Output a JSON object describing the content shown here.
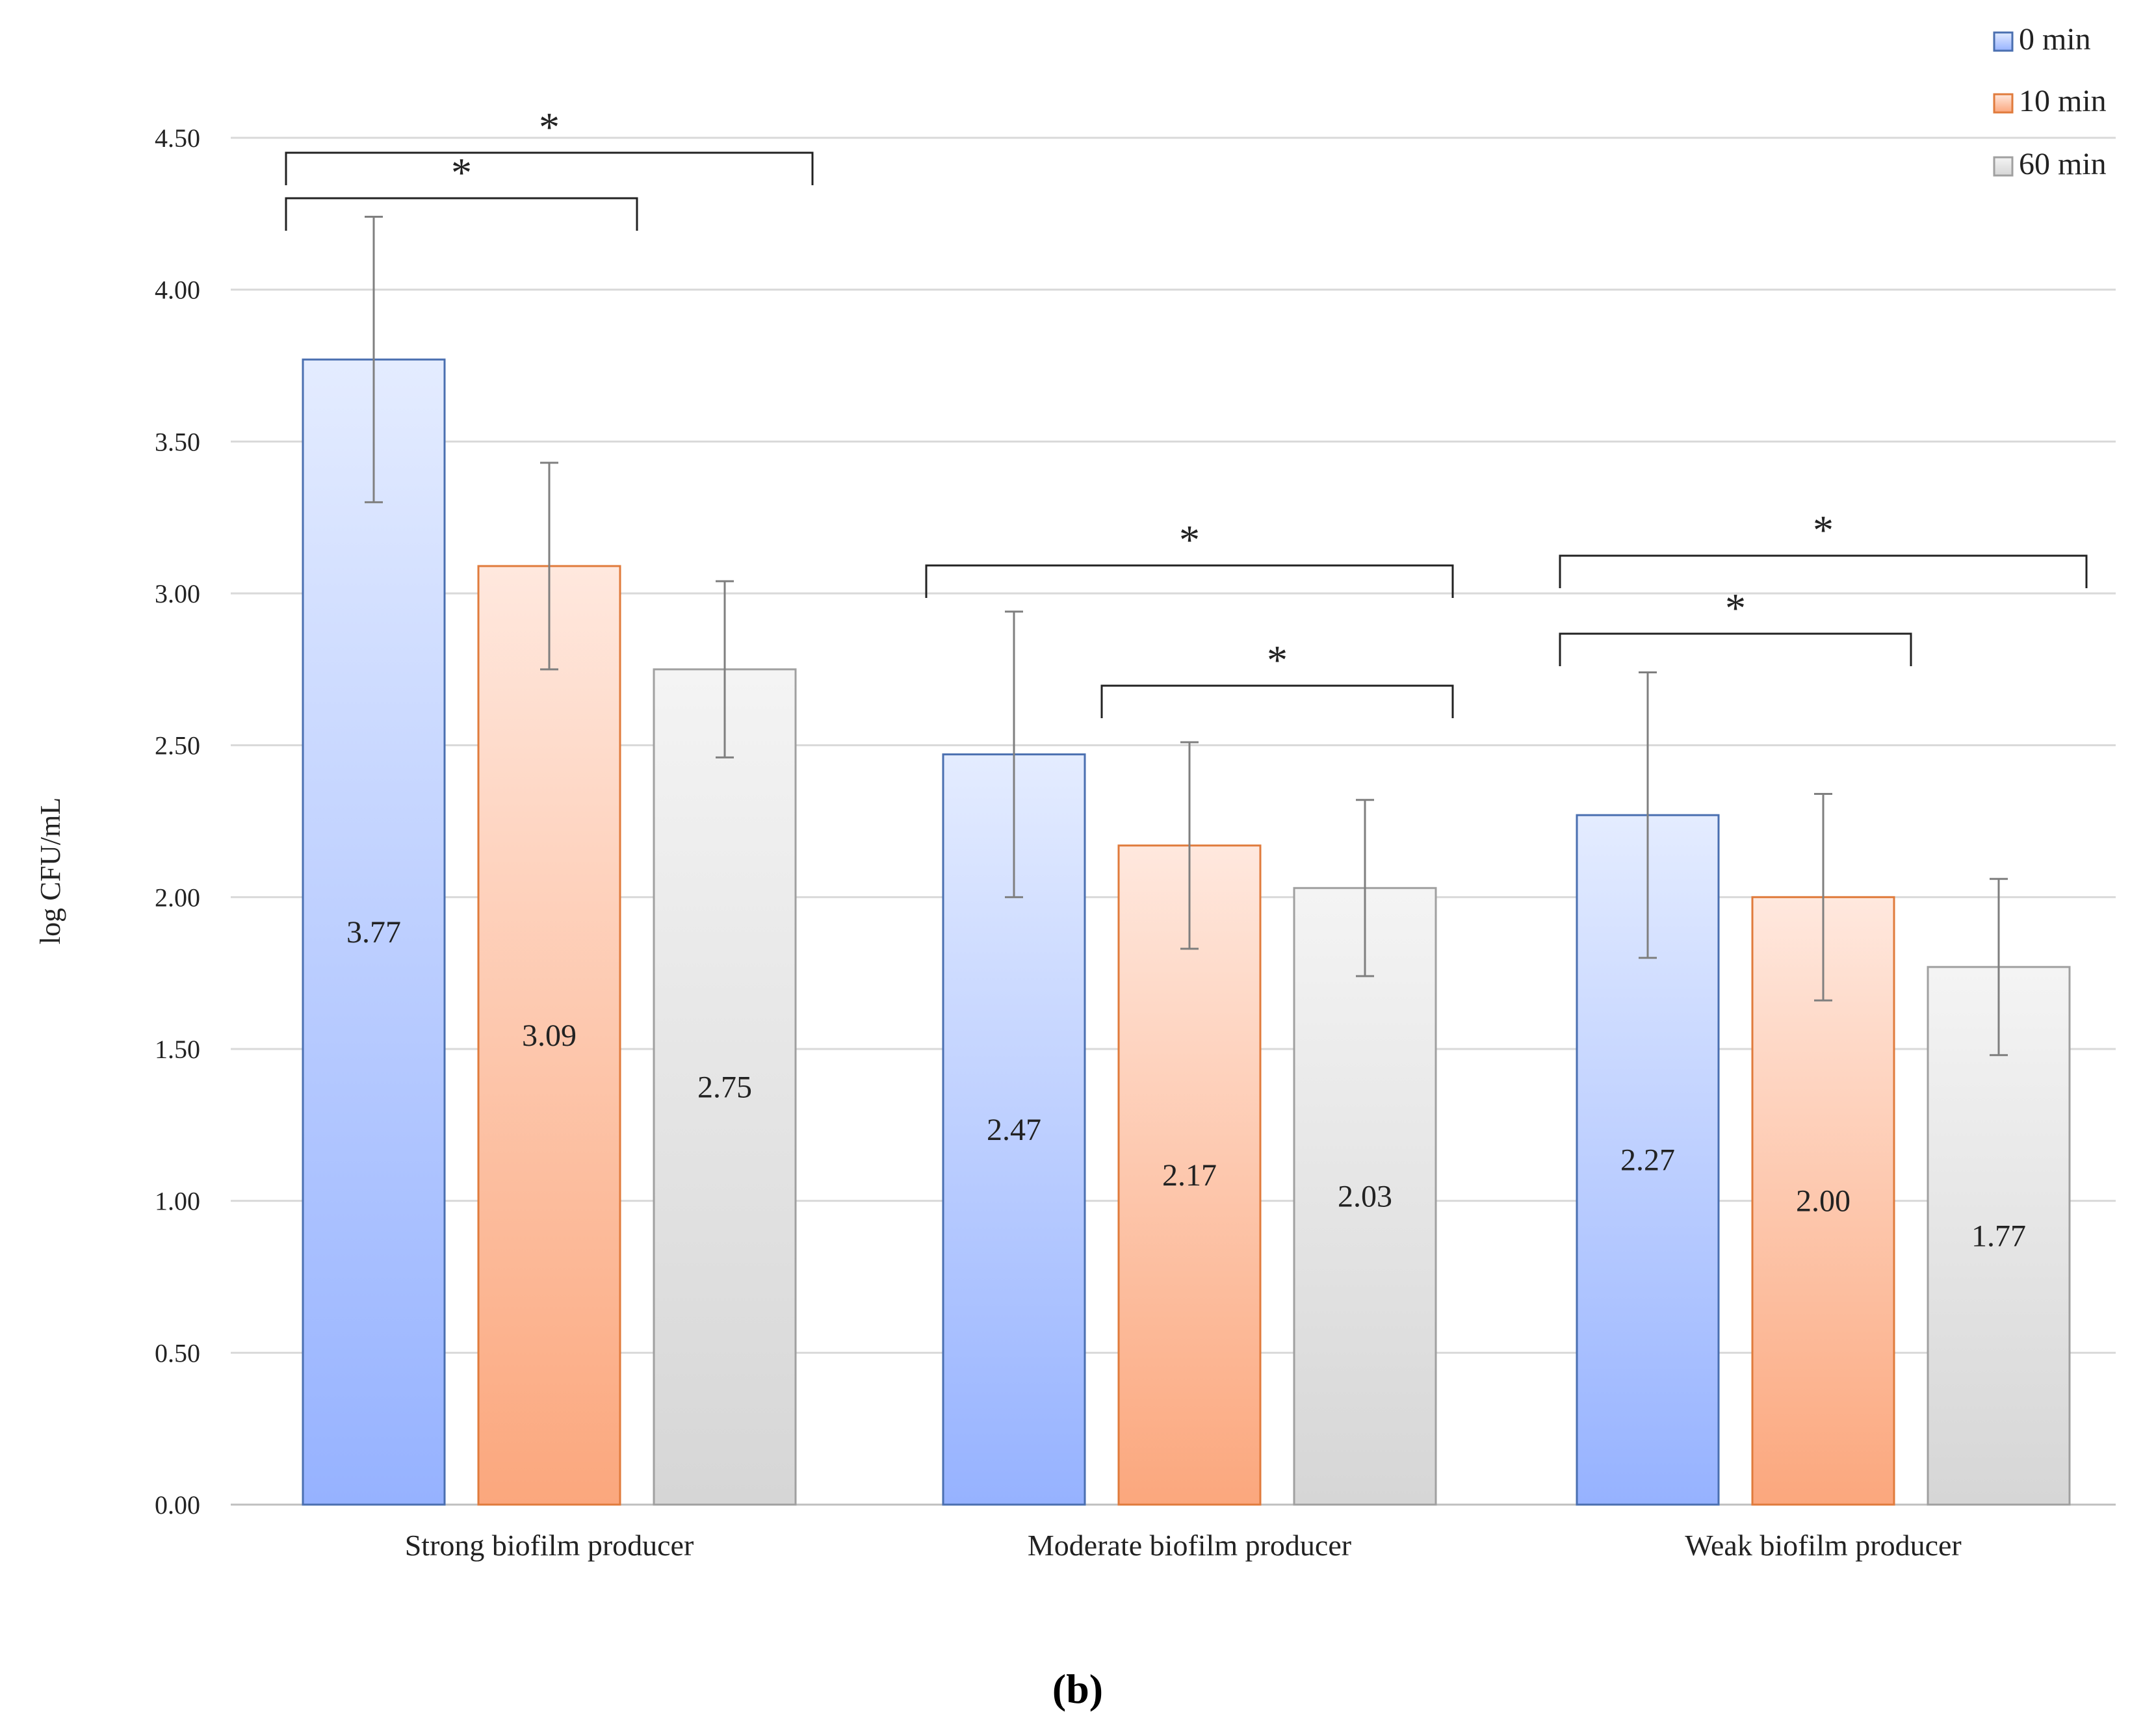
{
  "chart_data": {
    "type": "bar",
    "title": "",
    "xlabel": "",
    "ylabel": "log CFU/mL",
    "ylim": [
      0,
      4.5
    ],
    "yticks": [
      "0.00",
      "0.50",
      "1.00",
      "1.50",
      "2.00",
      "2.50",
      "3.00",
      "3.50",
      "4.00",
      "4.50"
    ],
    "grid": true,
    "legend_position": "top-right",
    "categories": [
      "Strong biofilm producer",
      "Moderate biofilm producer",
      "Weak biofilm producer"
    ],
    "series": [
      {
        "name": "0 min",
        "values": [
          3.77,
          2.47,
          2.27
        ],
        "errors": [
          0.47,
          0.47,
          0.47
        ],
        "labels": [
          "3.77",
          "2.47",
          "2.27"
        ]
      },
      {
        "name": "10 min",
        "values": [
          3.09,
          2.17,
          2.0
        ],
        "errors": [
          0.34,
          0.34,
          0.34
        ],
        "labels": [
          "3.09",
          "2.17",
          "2.00"
        ]
      },
      {
        "name": "60 min",
        "values": [
          2.75,
          2.03,
          1.77
        ],
        "errors": [
          0.29,
          0.29,
          0.29
        ],
        "labels": [
          "2.75",
          "2.03",
          "1.77"
        ]
      }
    ],
    "series_colors": [
      {
        "stroke": "#4a6fb0",
        "top": "#e4ecff",
        "bottom": "#96b2ff"
      },
      {
        "stroke": "#e07b3c",
        "top": "#ffe8de",
        "bottom": "#fba77d"
      },
      {
        "stroke": "#a0a0a0",
        "top": "#f4f4f4",
        "bottom": "#d6d6d6"
      }
    ],
    "significance": [
      {
        "category": 0,
        "from": 0,
        "to": 2,
        "marker": "*"
      },
      {
        "category": 0,
        "from": 0,
        "to": 1,
        "marker": "*"
      },
      {
        "category": 1,
        "from": 0,
        "to": 2,
        "marker": "*"
      },
      {
        "category": 1,
        "from": 1,
        "to": 2,
        "marker": "*"
      },
      {
        "category": 2,
        "from": 0,
        "to": 2,
        "marker": "*"
      },
      {
        "category": 2,
        "from": 0,
        "to": 1,
        "marker": "*"
      }
    ]
  },
  "panel_label": "(b)"
}
